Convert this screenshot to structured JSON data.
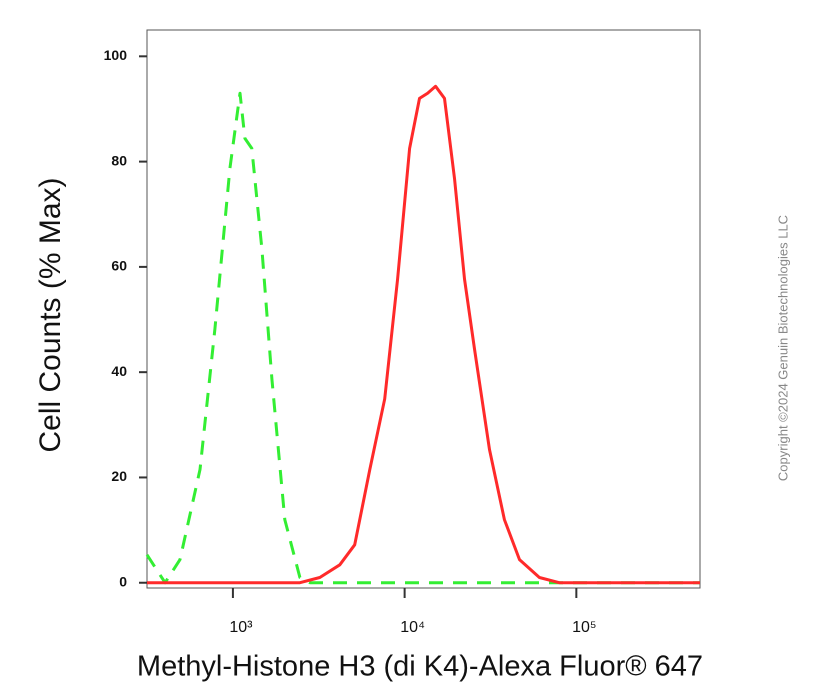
{
  "chart_data": {
    "type": "line",
    "xlabel": "Methyl-Histone H3 (di K4)-Alexa Fluor® 647",
    "ylabel": "Cell Counts (% Max)",
    "annotation": "Copyright ©2024 Genuin Biotechnologies LLC",
    "xscale": "log",
    "xlim": [
      316,
      525000
    ],
    "ylim": [
      -1,
      105
    ],
    "xticks": [
      {
        "value": 1000,
        "label": "10³"
      },
      {
        "value": 10000,
        "label": "10⁴"
      },
      {
        "value": 100000,
        "label": "10⁵"
      }
    ],
    "yticks": [
      0,
      20,
      40,
      60,
      80,
      100
    ],
    "series": [
      {
        "color": "#33ee33",
        "dashed": true,
        "x": [
          316,
          403,
          492,
          643,
          785,
          961,
          1099,
          1175,
          1289,
          1475,
          1687,
          2006,
          2454,
          2806,
          525000
        ],
        "values": [
          5.3,
          0,
          4.4,
          21.5,
          48.2,
          78.7,
          93,
          84.4,
          82.5,
          63.4,
          38.7,
          12,
          1,
          0,
          0
        ]
      },
      {
        "color": "#ff2a2a",
        "dashed": false,
        "x": [
          316,
          2454,
          3206,
          4190,
          5117,
          6265,
          7653,
          9103,
          10690,
          12210,
          13600,
          15140,
          17080,
          19530,
          22330,
          25530,
          31190,
          38110,
          46640,
          60930,
          79620,
          525000
        ],
        "values": [
          0,
          0,
          1,
          3.4,
          7.2,
          21.5,
          34.9,
          57.7,
          82.5,
          92,
          93,
          94.3,
          92,
          76.8,
          57.7,
          44.4,
          25.3,
          12,
          4.4,
          1,
          0,
          0
        ]
      }
    ]
  }
}
